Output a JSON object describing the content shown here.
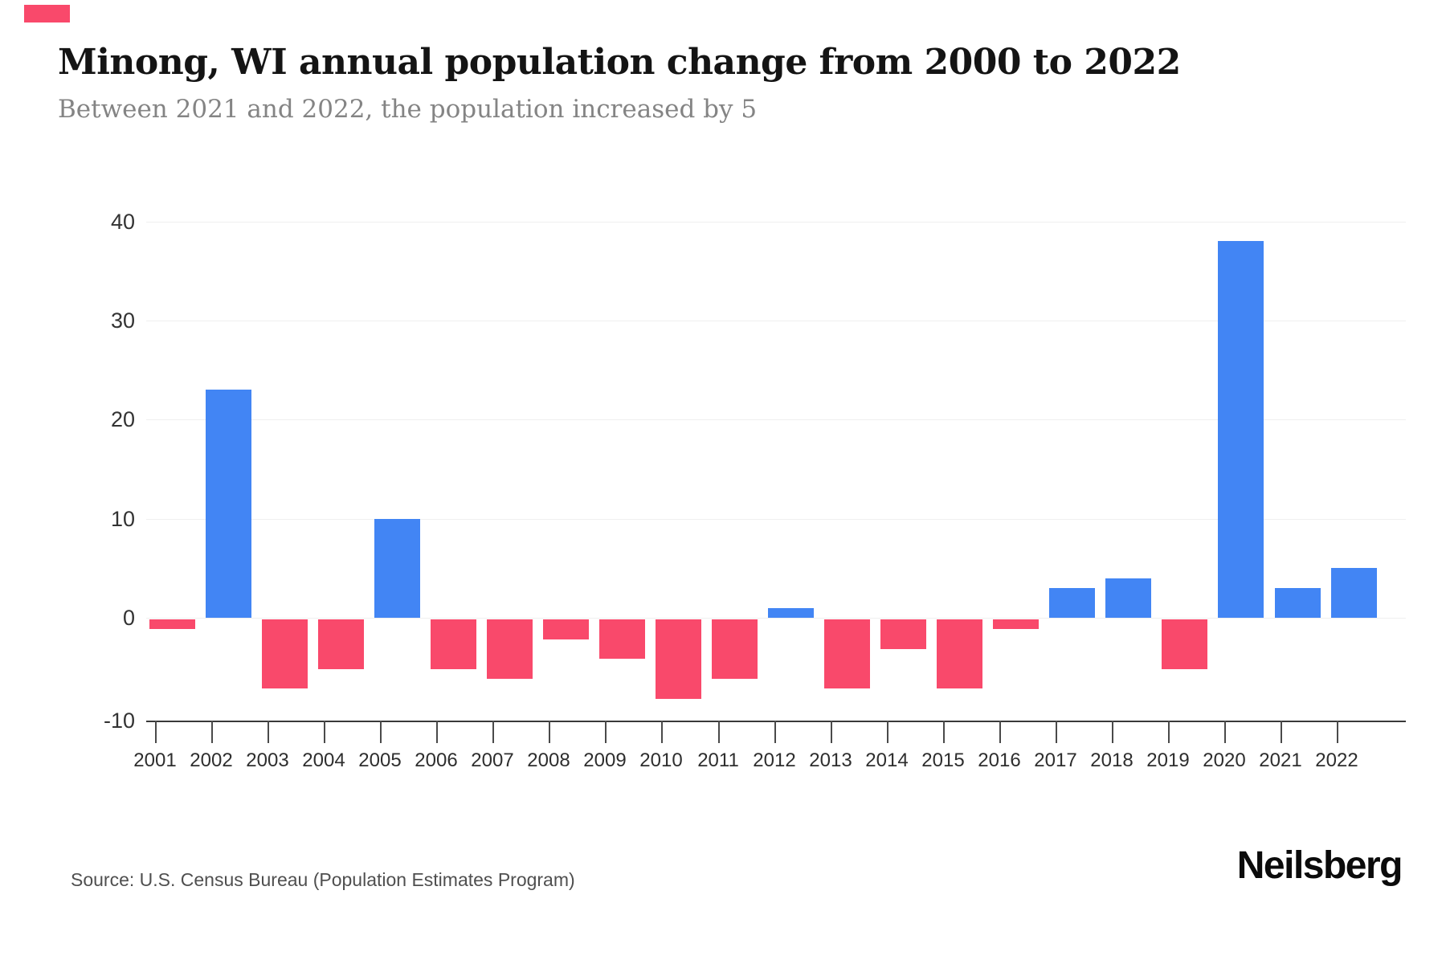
{
  "accent_color": "#f9496b",
  "header": {
    "title": "Minong, WI annual population change from 2000 to 2022",
    "subtitle": "Between 2021 and 2022, the population increased by 5"
  },
  "footer": {
    "source": "Source: U.S. Census Bureau (Population Estimates Program)",
    "brand": "Neilsberg"
  },
  "chart_data": {
    "type": "bar",
    "title": "Minong, WI annual population change from 2000 to 2022",
    "subtitle": "Between 2021 and 2022, the population increased by 5",
    "categories": [
      "2001",
      "2002",
      "2003",
      "2004",
      "2005",
      "2006",
      "2007",
      "2008",
      "2009",
      "2010",
      "2011",
      "2012",
      "2013",
      "2014",
      "2015",
      "2016",
      "2017",
      "2018",
      "2019",
      "2020",
      "2021",
      "2022"
    ],
    "values": [
      -1,
      23,
      -7,
      -5,
      10,
      -5,
      -6,
      -2,
      -4,
      -8,
      -6,
      1,
      -7,
      -3,
      -7,
      -1,
      3,
      4,
      -5,
      38,
      3,
      5
    ],
    "xlabel": "",
    "ylabel": "",
    "ylim": [
      -10,
      40
    ],
    "yticks": [
      40,
      30,
      20,
      10,
      0,
      -10
    ],
    "grid": true,
    "legend": "none",
    "positive_color": "#4285f4",
    "negative_color": "#f9496b"
  }
}
